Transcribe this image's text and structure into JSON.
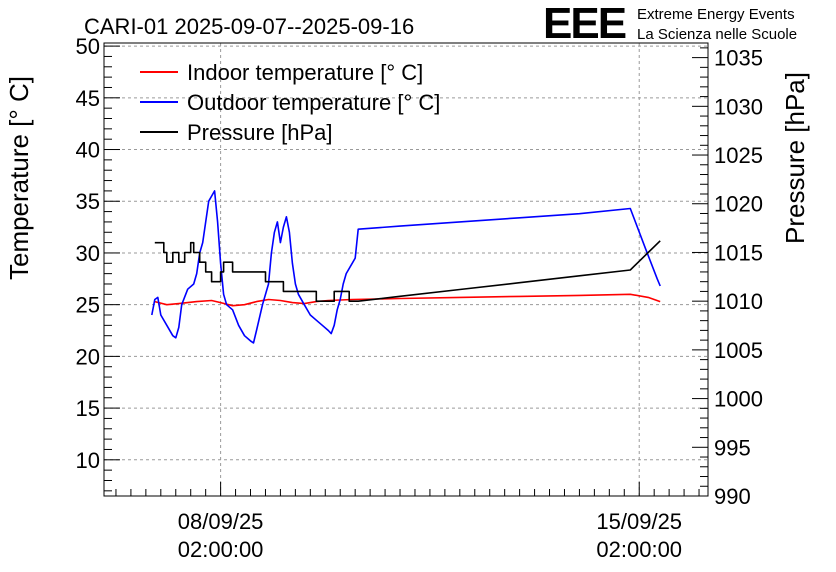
{
  "header": {
    "title": "CARI-01 2025-09-07--2025-09-16",
    "logo_text": "EEE",
    "logo_line1": "Extreme Energy Events",
    "logo_line2": "La Scienza nelle Scuole",
    "logo_color": "#1010ee"
  },
  "chart_data": {
    "type": "line",
    "title": "CARI-01 2025-09-07--2025-09-16",
    "xlabel": "",
    "ylabel": "Temperature [° C]",
    "y2label": "Pressure [hPa]",
    "x_ticks": [
      {
        "date": "08/09/25",
        "time": "02:00:00",
        "t": 1.0
      },
      {
        "date": "15/09/25",
        "time": "02:00:00",
        "t": 8.0
      }
    ],
    "xlim": [
      -0.95,
      9.15
    ],
    "ylim": [
      6.5,
      50.3
    ],
    "y2lim": [
      990,
      1036.5
    ],
    "y_ticks": [
      10,
      15,
      20,
      25,
      30,
      35,
      40,
      45,
      50
    ],
    "y2_ticks": [
      990,
      995,
      1000,
      1005,
      1010,
      1015,
      1020,
      1025,
      1030,
      1035
    ],
    "grid": true,
    "legend_position": "top-left",
    "series": [
      {
        "name": "Indoor temperature [° C]",
        "color": "#ff0000",
        "axis": "left",
        "points": [
          [
            -0.1,
            25.3
          ],
          [
            0.1,
            25.0
          ],
          [
            0.3,
            25.1
          ],
          [
            0.6,
            25.3
          ],
          [
            0.85,
            25.4
          ],
          [
            1.0,
            25.2
          ],
          [
            1.2,
            24.9
          ],
          [
            1.4,
            25.0
          ],
          [
            1.6,
            25.3
          ],
          [
            1.8,
            25.5
          ],
          [
            2.0,
            25.4
          ],
          [
            2.2,
            25.2
          ],
          [
            2.4,
            25.1
          ],
          [
            2.6,
            25.3
          ],
          [
            2.8,
            25.4
          ],
          [
            3.2,
            25.5
          ],
          [
            4.0,
            25.6
          ],
          [
            5.0,
            25.7
          ],
          [
            6.0,
            25.8
          ],
          [
            7.0,
            25.9
          ],
          [
            7.85,
            26.0
          ],
          [
            8.15,
            25.7
          ],
          [
            8.35,
            25.3
          ]
        ]
      },
      {
        "name": "Outdoor temperature [° C]",
        "color": "#0000ff",
        "axis": "left",
        "points": [
          [
            -0.15,
            24.0
          ],
          [
            -0.1,
            25.5
          ],
          [
            -0.05,
            25.7
          ],
          [
            0.0,
            24.0
          ],
          [
            0.1,
            23.0
          ],
          [
            0.2,
            22.0
          ],
          [
            0.25,
            21.8
          ],
          [
            0.3,
            22.8
          ],
          [
            0.35,
            25.0
          ],
          [
            0.45,
            26.5
          ],
          [
            0.55,
            27.0
          ],
          [
            0.6,
            28.0
          ],
          [
            0.65,
            30.0
          ],
          [
            0.7,
            31.0
          ],
          [
            0.75,
            33.0
          ],
          [
            0.8,
            35.0
          ],
          [
            0.85,
            35.5
          ],
          [
            0.9,
            36.0
          ],
          [
            0.95,
            33.0
          ],
          [
            1.0,
            29.0
          ],
          [
            1.05,
            26.0
          ],
          [
            1.1,
            25.0
          ],
          [
            1.2,
            24.5
          ],
          [
            1.3,
            23.0
          ],
          [
            1.4,
            22.0
          ],
          [
            1.5,
            21.5
          ],
          [
            1.55,
            21.3
          ],
          [
            1.6,
            22.5
          ],
          [
            1.7,
            25.0
          ],
          [
            1.8,
            27.0
          ],
          [
            1.85,
            30.0
          ],
          [
            1.9,
            32.0
          ],
          [
            1.95,
            33.0
          ],
          [
            2.0,
            31.0
          ],
          [
            2.05,
            32.5
          ],
          [
            2.1,
            33.5
          ],
          [
            2.15,
            32.0
          ],
          [
            2.2,
            29.0
          ],
          [
            2.25,
            27.0
          ],
          [
            2.3,
            26.0
          ],
          [
            2.4,
            25.0
          ],
          [
            2.5,
            24.0
          ],
          [
            2.6,
            23.5
          ],
          [
            2.7,
            23.0
          ],
          [
            2.8,
            22.5
          ],
          [
            2.85,
            22.2
          ],
          [
            2.9,
            23.0
          ],
          [
            2.95,
            24.5
          ],
          [
            3.0,
            25.5
          ],
          [
            3.05,
            27.0
          ],
          [
            3.1,
            28.0
          ],
          [
            3.2,
            29.0
          ],
          [
            3.25,
            29.5
          ],
          [
            3.3,
            32.3
          ],
          [
            4.0,
            32.6
          ],
          [
            5.0,
            33.0
          ],
          [
            6.0,
            33.4
          ],
          [
            7.0,
            33.8
          ],
          [
            7.85,
            34.3
          ],
          [
            8.1,
            30.5
          ],
          [
            8.3,
            27.5
          ],
          [
            8.35,
            26.8
          ]
        ]
      },
      {
        "name": "Pressure [hPa]",
        "color": "#000000",
        "axis": "right",
        "points": [
          [
            -0.1,
            1016
          ],
          [
            0.05,
            1016
          ],
          [
            0.05,
            1015
          ],
          [
            0.1,
            1015
          ],
          [
            0.1,
            1014
          ],
          [
            0.2,
            1014
          ],
          [
            0.2,
            1015
          ],
          [
            0.3,
            1015
          ],
          [
            0.3,
            1014
          ],
          [
            0.4,
            1014
          ],
          [
            0.4,
            1015
          ],
          [
            0.5,
            1015
          ],
          [
            0.5,
            1016
          ],
          [
            0.55,
            1016
          ],
          [
            0.55,
            1015
          ],
          [
            0.65,
            1015
          ],
          [
            0.65,
            1014
          ],
          [
            0.75,
            1014
          ],
          [
            0.75,
            1013
          ],
          [
            0.85,
            1013
          ],
          [
            0.85,
            1012
          ],
          [
            1.0,
            1012
          ],
          [
            1.0,
            1013
          ],
          [
            1.05,
            1013
          ],
          [
            1.05,
            1014
          ],
          [
            1.2,
            1014
          ],
          [
            1.2,
            1013
          ],
          [
            1.6,
            1013
          ],
          [
            1.75,
            1013
          ],
          [
            1.75,
            1012
          ],
          [
            2.05,
            1012
          ],
          [
            2.05,
            1011
          ],
          [
            2.4,
            1011
          ],
          [
            2.6,
            1011
          ],
          [
            2.6,
            1010
          ],
          [
            2.9,
            1010
          ],
          [
            2.9,
            1011
          ],
          [
            3.15,
            1011
          ],
          [
            3.15,
            1010
          ],
          [
            3.3,
            1010
          ],
          [
            4.0,
            1010.5
          ],
          [
            5.0,
            1011.2
          ],
          [
            6.0,
            1011.9
          ],
          [
            7.0,
            1012.6
          ],
          [
            7.85,
            1013.2
          ],
          [
            8.15,
            1015.0
          ],
          [
            8.35,
            1016.2
          ]
        ]
      }
    ]
  }
}
